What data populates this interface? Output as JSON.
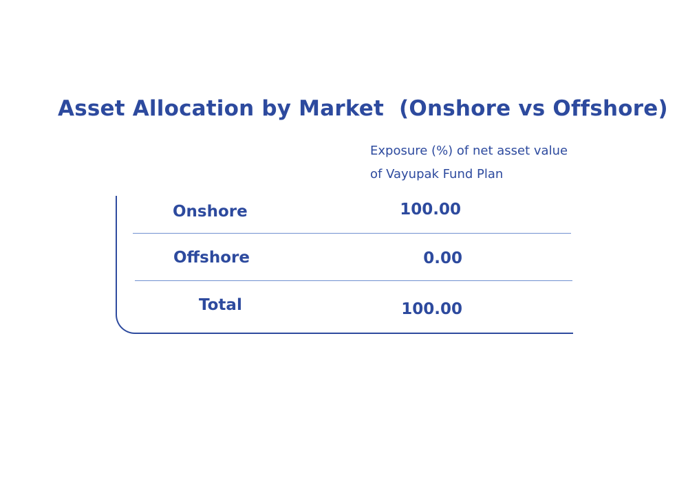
{
  "title": "Asset Allocation by Market  (Onshore vs Offshore)",
  "column_header": {
    "line1": "Exposure (%) of net asset value",
    "line2": "of Vayupak Fund Plan"
  },
  "rows": [
    {
      "label": "Onshore",
      "value": "100.00"
    },
    {
      "label": "Offshore",
      "value": "0.00"
    },
    {
      "label": "Total",
      "value": "100.00"
    }
  ],
  "colors": {
    "text": "#2d4a9e",
    "rule": "#6f8fd0"
  }
}
